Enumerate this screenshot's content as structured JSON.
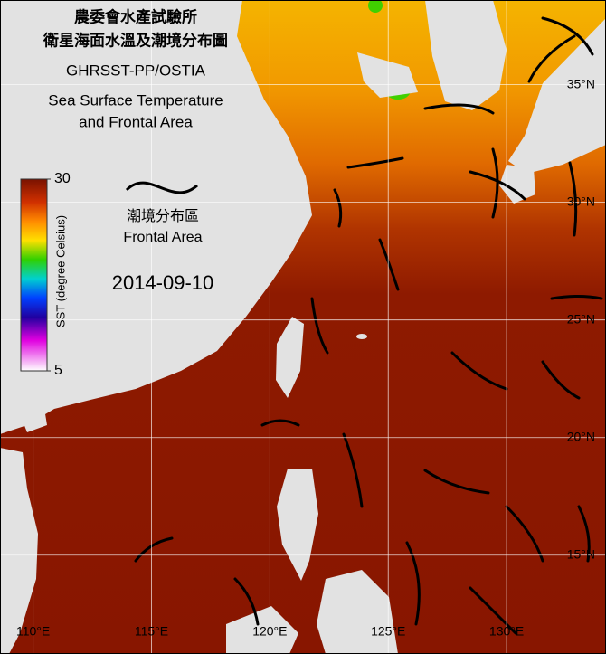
{
  "header": {
    "lines": [
      "農委會水產試驗所",
      "衛星海面水溫及潮境分布圖",
      "GHRSST-PP/OSTIA",
      "Sea Surface Temperature",
      "and Frontal Area"
    ]
  },
  "legend": {
    "label_zh": "潮境分布區",
    "label_en": "Frontal Area"
  },
  "date": "2014-09-10",
  "colorbar": {
    "label": "SST (degree Celsius)",
    "lim": [
      5,
      30
    ],
    "ticks": [
      5,
      30
    ]
  },
  "map": {
    "lonlim": [
      108.6,
      134.2
    ],
    "latlim": [
      10.8,
      38.6
    ],
    "lon_ticks": [
      {
        "value": 110,
        "label": "110°E"
      },
      {
        "value": 115,
        "label": "115°E"
      },
      {
        "value": 120,
        "label": "120°E"
      },
      {
        "value": 125,
        "label": "125°E"
      },
      {
        "value": 130,
        "label": "130°E"
      }
    ],
    "lat_ticks": [
      {
        "value": 35,
        "label": "35°N"
      },
      {
        "value": 30,
        "label": "30°N"
      },
      {
        "value": 25,
        "label": "25°N"
      },
      {
        "value": 20,
        "label": "20°N"
      },
      {
        "value": 15,
        "label": "15°N"
      }
    ]
  }
}
